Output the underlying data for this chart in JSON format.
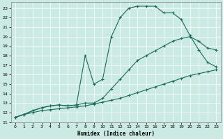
{
  "bg_color": "#cceae4",
  "line_color": "#1a6b5a",
  "grid_color": "#ffffff",
  "xlabel": "Humidex (Indice chaleur)",
  "xlim": [
    -0.5,
    23.5
  ],
  "ylim": [
    11,
    23.6
  ],
  "xticks": [
    0,
    1,
    2,
    3,
    4,
    5,
    6,
    7,
    8,
    9,
    10,
    11,
    12,
    13,
    14,
    15,
    16,
    17,
    18,
    19,
    20,
    21,
    22,
    23
  ],
  "yticks": [
    11,
    12,
    13,
    14,
    15,
    16,
    17,
    18,
    19,
    20,
    21,
    22,
    23
  ],
  "line1_x": [
    0,
    1,
    2,
    3,
    4,
    5,
    6,
    7,
    8,
    9,
    10,
    11,
    12,
    13,
    14,
    15,
    16,
    17,
    18,
    19,
    20,
    21,
    22,
    23
  ],
  "line1_y": [
    11.5,
    11.8,
    12.2,
    12.5,
    12.7,
    12.8,
    12.7,
    12.8,
    18.0,
    15.0,
    15.5,
    20.0,
    22.0,
    23.0,
    23.2,
    23.2,
    23.2,
    22.5,
    22.5,
    21.8,
    20.1,
    18.6,
    17.3,
    16.8
  ],
  "line2_x": [
    0,
    1,
    2,
    3,
    4,
    5,
    6,
    7,
    8,
    9,
    10,
    11,
    12,
    13,
    14,
    15,
    16,
    17,
    18,
    19,
    20,
    21,
    22,
    23
  ],
  "line2_y": [
    11.5,
    11.8,
    12.2,
    12.5,
    12.7,
    12.8,
    12.7,
    12.8,
    13.0,
    13.0,
    13.5,
    14.5,
    15.5,
    16.5,
    17.5,
    18.0,
    18.5,
    19.0,
    19.5,
    19.8,
    20.0,
    19.5,
    18.8,
    18.6
  ],
  "line3_x": [
    0,
    1,
    2,
    3,
    4,
    5,
    6,
    7,
    8,
    9,
    10,
    11,
    12,
    13,
    14,
    15,
    16,
    17,
    18,
    19,
    20,
    21,
    22,
    23
  ],
  "line3_y": [
    11.5,
    11.8,
    12.0,
    12.2,
    12.3,
    12.4,
    12.5,
    12.6,
    12.7,
    12.9,
    13.1,
    13.3,
    13.5,
    13.8,
    14.1,
    14.4,
    14.7,
    15.0,
    15.3,
    15.6,
    15.9,
    16.1,
    16.3,
    16.5
  ]
}
